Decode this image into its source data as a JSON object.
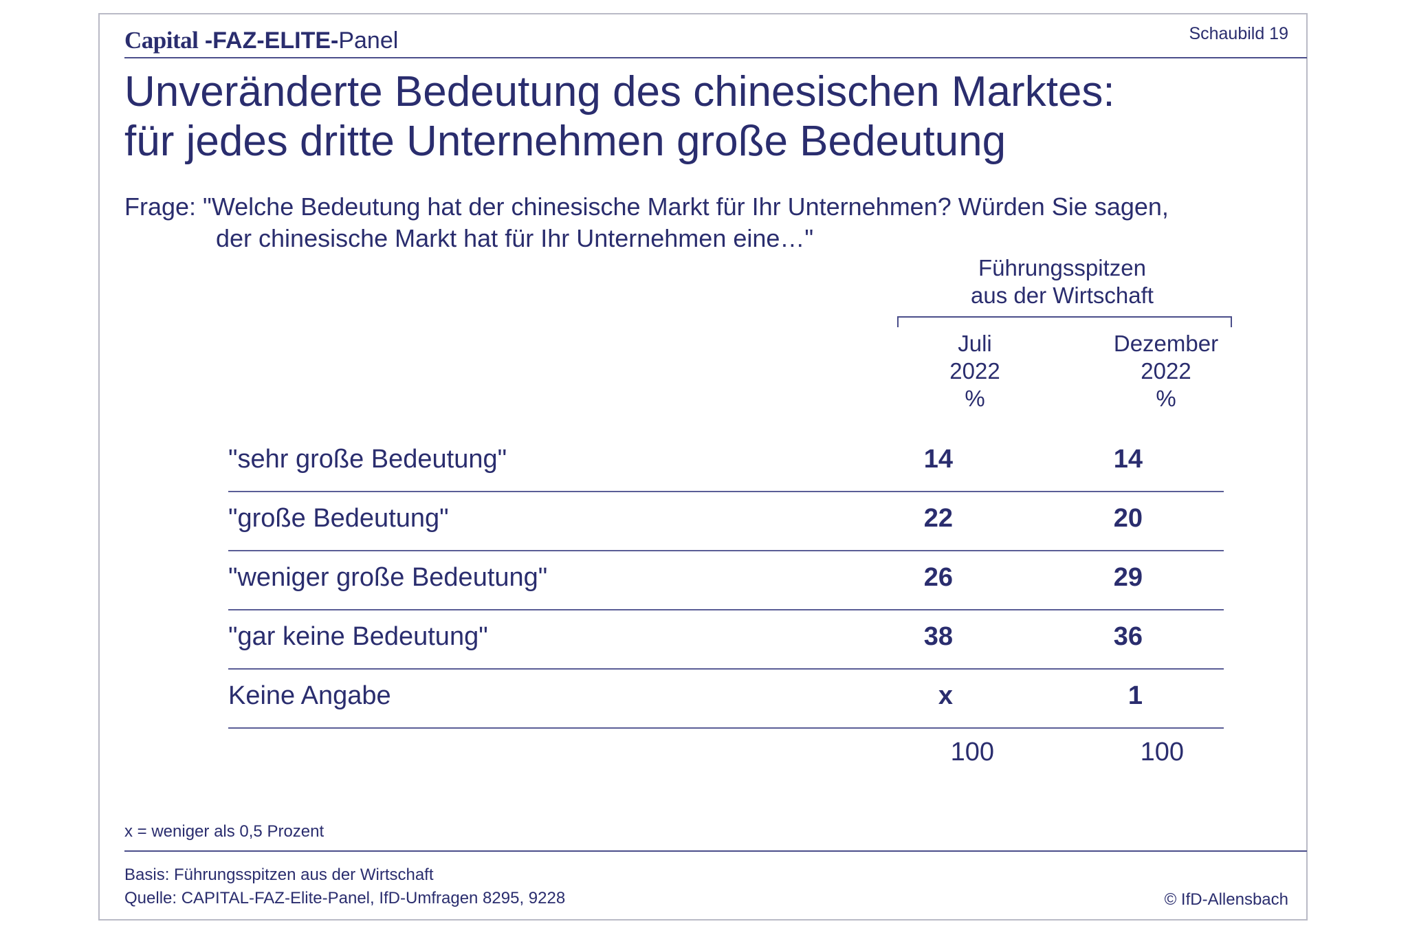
{
  "header": {
    "brand_capital": "Capital",
    "brand_faz_elite": "-FAZ-ELITE-",
    "brand_panel": "Panel",
    "figure_number": "Schaubild 19"
  },
  "title_line1": "Unveränderte Bedeutung des chinesischen Marktes:",
  "title_line2": "für jedes dritte Unternehmen große Bedeutung",
  "question_line1": "Frage: \"Welche Bedeutung hat der chinesische Markt für Ihr Unternehmen? Würden Sie sagen,",
  "question_line2": "der chinesische Markt hat für Ihr Unternehmen eine…\"",
  "footnote": "x = weniger als 0,5 Prozent",
  "basis": "Basis: Führungsspitzen aus der Wirtschaft",
  "source": "Quelle: CAPITAL-FAZ-Elite-Panel, IfD-Umfragen 8295, 9228",
  "copyright": "© IfD-Allensbach",
  "colors": {
    "text": "#2a2d6e",
    "rules": "#4a4d8a",
    "frame": "#b9bac6"
  },
  "chart_data": {
    "type": "table",
    "group_header_line1": "Führungsspitzen",
    "group_header_line2": "aus der Wirtschaft",
    "columns": [
      {
        "month": "Juli",
        "year": "2022",
        "unit": "%"
      },
      {
        "month": "Dezember",
        "year": "2022",
        "unit": "%"
      }
    ],
    "rows": [
      {
        "label": "\"sehr große Bedeutung\"",
        "values": [
          "14",
          "14"
        ]
      },
      {
        "label": "\"große Bedeutung\"",
        "values": [
          "22",
          "20"
        ]
      },
      {
        "label": "\"weniger große Bedeutung\"",
        "values": [
          "26",
          "29"
        ]
      },
      {
        "label": "\"gar keine Bedeutung\"",
        "values": [
          "38",
          "36"
        ]
      },
      {
        "label": "Keine Angabe",
        "values": [
          "x",
          "1"
        ]
      }
    ],
    "totals": [
      "100",
      "100"
    ]
  }
}
